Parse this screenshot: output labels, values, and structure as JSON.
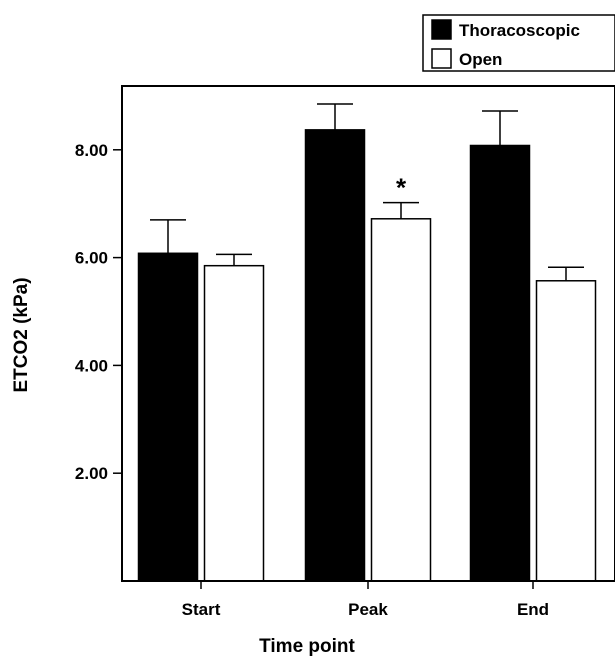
{
  "chart_data": {
    "type": "bar",
    "categories": [
      "Start",
      "Peak",
      "End"
    ],
    "series": [
      {
        "name": "Thoracoscopic",
        "values": [
          6.08,
          8.37,
          8.08
        ],
        "error": [
          0.62,
          0.48,
          0.64
        ],
        "color": "#000000"
      },
      {
        "name": "Open",
        "values": [
          5.85,
          6.72,
          5.57
        ],
        "error": [
          0.21,
          0.3,
          0.25
        ],
        "color": "#ffffff"
      }
    ],
    "xlabel": "Time point",
    "ylabel": "ETCO2 (kPa)",
    "ylim": [
      0,
      9.3
    ],
    "yticks": [
      2,
      4,
      6,
      8
    ],
    "ytick_labels": [
      "2.00",
      "4.00",
      "6.00",
      "8.00"
    ],
    "grid": false,
    "legend": "top-right",
    "annotations": [
      {
        "text": "*",
        "category": "Peak",
        "series": "Open"
      }
    ]
  }
}
